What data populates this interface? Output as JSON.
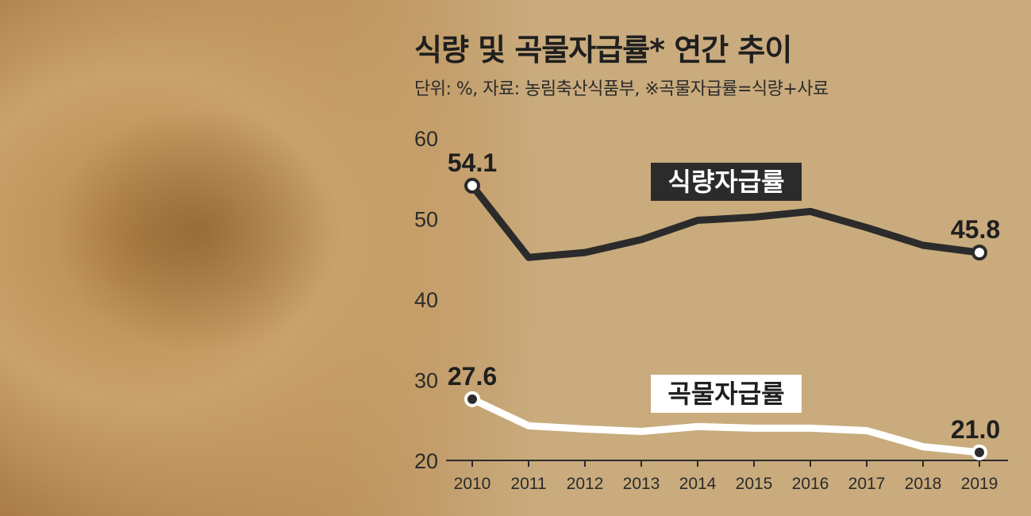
{
  "title": "식량 및 곡물자급률* 연간 추이",
  "subtitle": "단위: %, 자료: 농림축산식품부, ※곡물자급률=식량+사료",
  "chart_data": {
    "type": "line",
    "x": [
      "2010",
      "2011",
      "2012",
      "2013",
      "2014",
      "2015",
      "2016",
      "2017",
      "2018",
      "2019"
    ],
    "yticks": [
      20,
      30,
      40,
      50,
      60
    ],
    "ylim": [
      20,
      60
    ],
    "grid": false,
    "series": [
      {
        "name": "식량자급률",
        "values": [
          54.1,
          45.2,
          45.8,
          47.4,
          49.8,
          50.2,
          50.9,
          48.9,
          46.7,
          45.8
        ],
        "color": "#2b2b2b",
        "tag_bg": "#2b2b2b",
        "tag_text_color": "#ffffff",
        "labels": [
          {
            "index": 0,
            "text": "54.1"
          },
          {
            "index": 9,
            "text": "45.8"
          }
        ]
      },
      {
        "name": "곡물자급률",
        "values": [
          27.6,
          24.3,
          23.9,
          23.6,
          24.2,
          24.0,
          24.0,
          23.7,
          21.7,
          21.0
        ],
        "color": "#ffffff",
        "tag_bg": "#ffffff",
        "tag_text_color": "#1f1f1f",
        "labels": [
          {
            "index": 0,
            "text": "27.6"
          },
          {
            "index": 9,
            "text": "21.0"
          }
        ]
      }
    ]
  }
}
